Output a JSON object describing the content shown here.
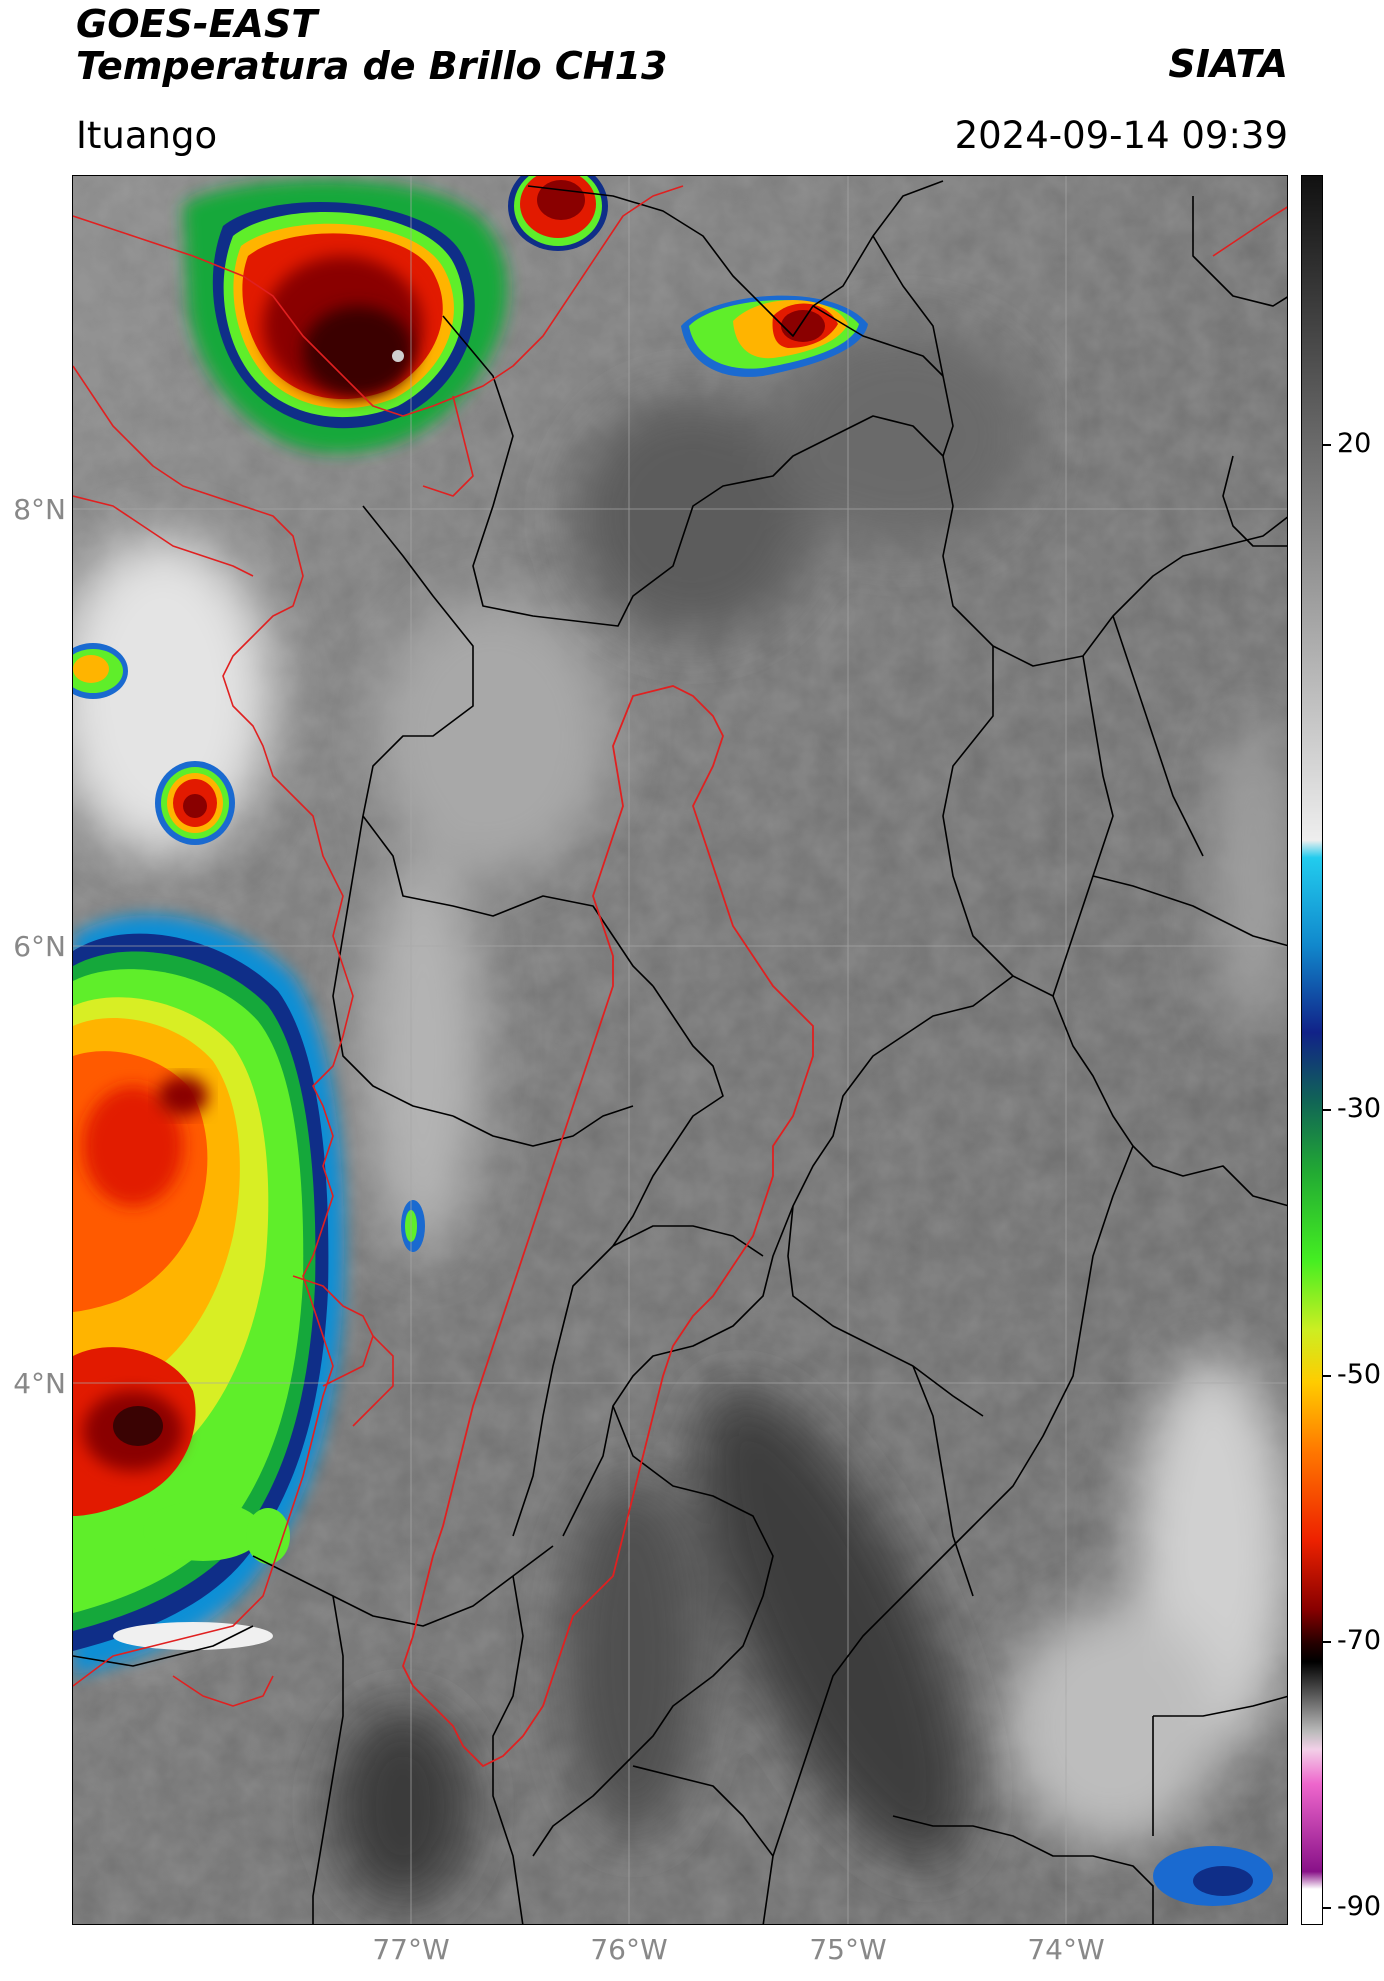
{
  "header": {
    "satellite": "GOES-EAST",
    "product": "Temperatura de Brillo CH13",
    "organization": "SIATA",
    "location": "Ituango",
    "datetime": "2024-09-14 09:39"
  },
  "map": {
    "lat_ticks": [
      "8°N",
      "6°N",
      "4°N"
    ],
    "lon_ticks": [
      "77°W",
      "76°W",
      "75°W",
      "74°W"
    ],
    "gridlines": true
  },
  "colorbar": {
    "ticks": [
      "20",
      "-30",
      "-50",
      "-70",
      "-90"
    ],
    "gradient_stops": [
      {
        "pos": 0,
        "color": "#111111"
      },
      {
        "pos": 38,
        "color": "#eeeeee"
      },
      {
        "pos": 39,
        "color": "#22ccee"
      },
      {
        "pos": 44,
        "color": "#1188cc"
      },
      {
        "pos": 49,
        "color": "#112288"
      },
      {
        "pos": 53,
        "color": "#116655"
      },
      {
        "pos": 57,
        "color": "#22aa33"
      },
      {
        "pos": 62,
        "color": "#44ee22"
      },
      {
        "pos": 66,
        "color": "#ccee22"
      },
      {
        "pos": 69,
        "color": "#ffcc00"
      },
      {
        "pos": 73,
        "color": "#ff7700"
      },
      {
        "pos": 78,
        "color": "#ee2200"
      },
      {
        "pos": 82,
        "color": "#880000"
      },
      {
        "pos": 84,
        "color": "#220000"
      },
      {
        "pos": 85,
        "color": "#000000"
      },
      {
        "pos": 89,
        "color": "#bbbbbb"
      },
      {
        "pos": 90,
        "color": "#f2d0e8"
      },
      {
        "pos": 92,
        "color": "#ee66cc"
      },
      {
        "pos": 97,
        "color": "#881188"
      },
      {
        "pos": 98,
        "color": "#ffffff"
      }
    ]
  },
  "colors": {
    "cloud_top_palette": [
      "#0d8fd6",
      "#123a92",
      "#15a83b",
      "#5fee2a",
      "#d8ee24",
      "#ffb400",
      "#ff5a00",
      "#d90f00",
      "#7d0000",
      "#2a0505"
    ],
    "border_national": "#e02020",
    "border_department": "#000000",
    "basin_outline": "#e02020"
  }
}
